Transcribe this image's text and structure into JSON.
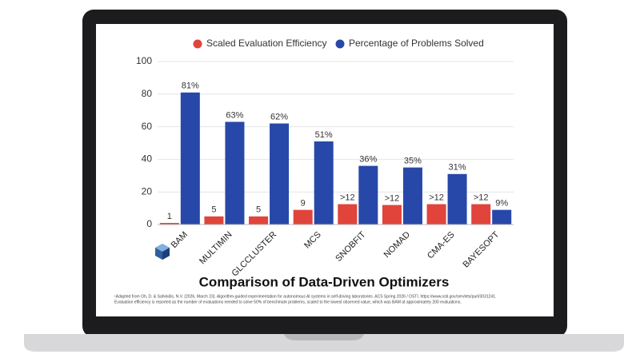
{
  "chart_data": {
    "type": "bar",
    "title": "Comparison of Data-Driven Optimizers",
    "footnotes": [
      "¹Adapted from Oh, D. & Sahinidis, N.V. (2026, March 23). Algorithm-guided experimentation for autonomous AI systems in self-driving laboratories. ACS Spring 2026 / OSTI. https://www.osti.gov/servlets/purl/3031241.",
      "Evaluation efficiency is reported as the number of evaluations needed to solve 50% of benchmark problems, scaled to the lowest observed value, which was BAM at approximately 200 evaluations."
    ],
    "categories": [
      "BAM",
      "MULTIMIN",
      "GLCCLUSTER",
      "MCS",
      "SNOBFIT",
      "NOMAD",
      "CMA-ES",
      "BAYESOPT"
    ],
    "series": [
      {
        "name": "Scaled Evaluation Efficiency",
        "color": "#e0443b",
        "values": [
          1,
          5,
          5,
          9,
          12.5,
          12,
          12.5,
          12.5
        ],
        "value_labels": [
          "1",
          "5",
          "5",
          "9",
          ">12",
          ">12",
          ">12",
          ">12"
        ]
      },
      {
        "name": "Percentage of Problems Solved",
        "color": "#2748a8",
        "values": [
          81,
          63,
          62,
          51,
          36,
          35,
          31,
          9
        ],
        "value_labels": [
          "81%",
          "63%",
          "62%",
          "51%",
          "36%",
          "35%",
          "31%",
          "9%"
        ]
      }
    ],
    "ylim": [
      0,
      100
    ],
    "yticks": [
      0,
      20,
      40,
      60,
      80,
      100
    ],
    "grid": true
  }
}
